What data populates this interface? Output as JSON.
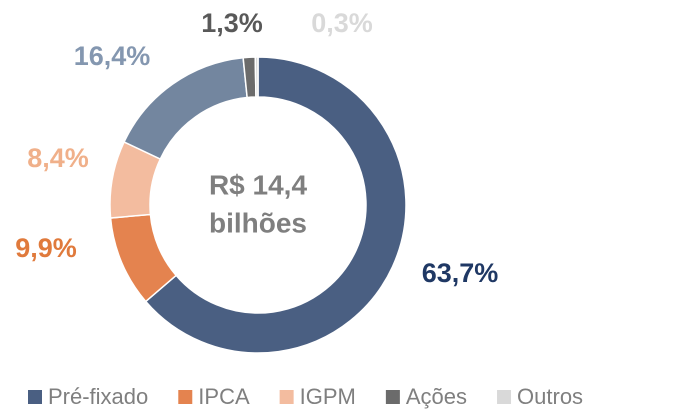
{
  "chart_data": {
    "type": "donut",
    "center_text": [
      "R$ 14,4",
      "bilhões"
    ],
    "categories": [
      "Pré-fixado",
      "IPCA",
      "IGPM",
      null,
      "Ações",
      "Outros"
    ],
    "values": [
      63.7,
      9.9,
      8.4,
      16.4,
      1.3,
      0.3
    ],
    "value_labels": [
      "63,7%",
      "9,9%",
      "8,4%",
      "16,4%",
      "1,3%",
      "0,3%"
    ],
    "colors": [
      "#4a5f82",
      "#e4834f",
      "#f3bc9f",
      "#73869f",
      "#6b6b6b",
      "#d9d9d9"
    ],
    "label_colors": [
      "#1f3864",
      "#e07a3c",
      "#f0b08a",
      "#8497b0",
      "#595959",
      "#d9d9d9"
    ],
    "legend": "bottom"
  }
}
